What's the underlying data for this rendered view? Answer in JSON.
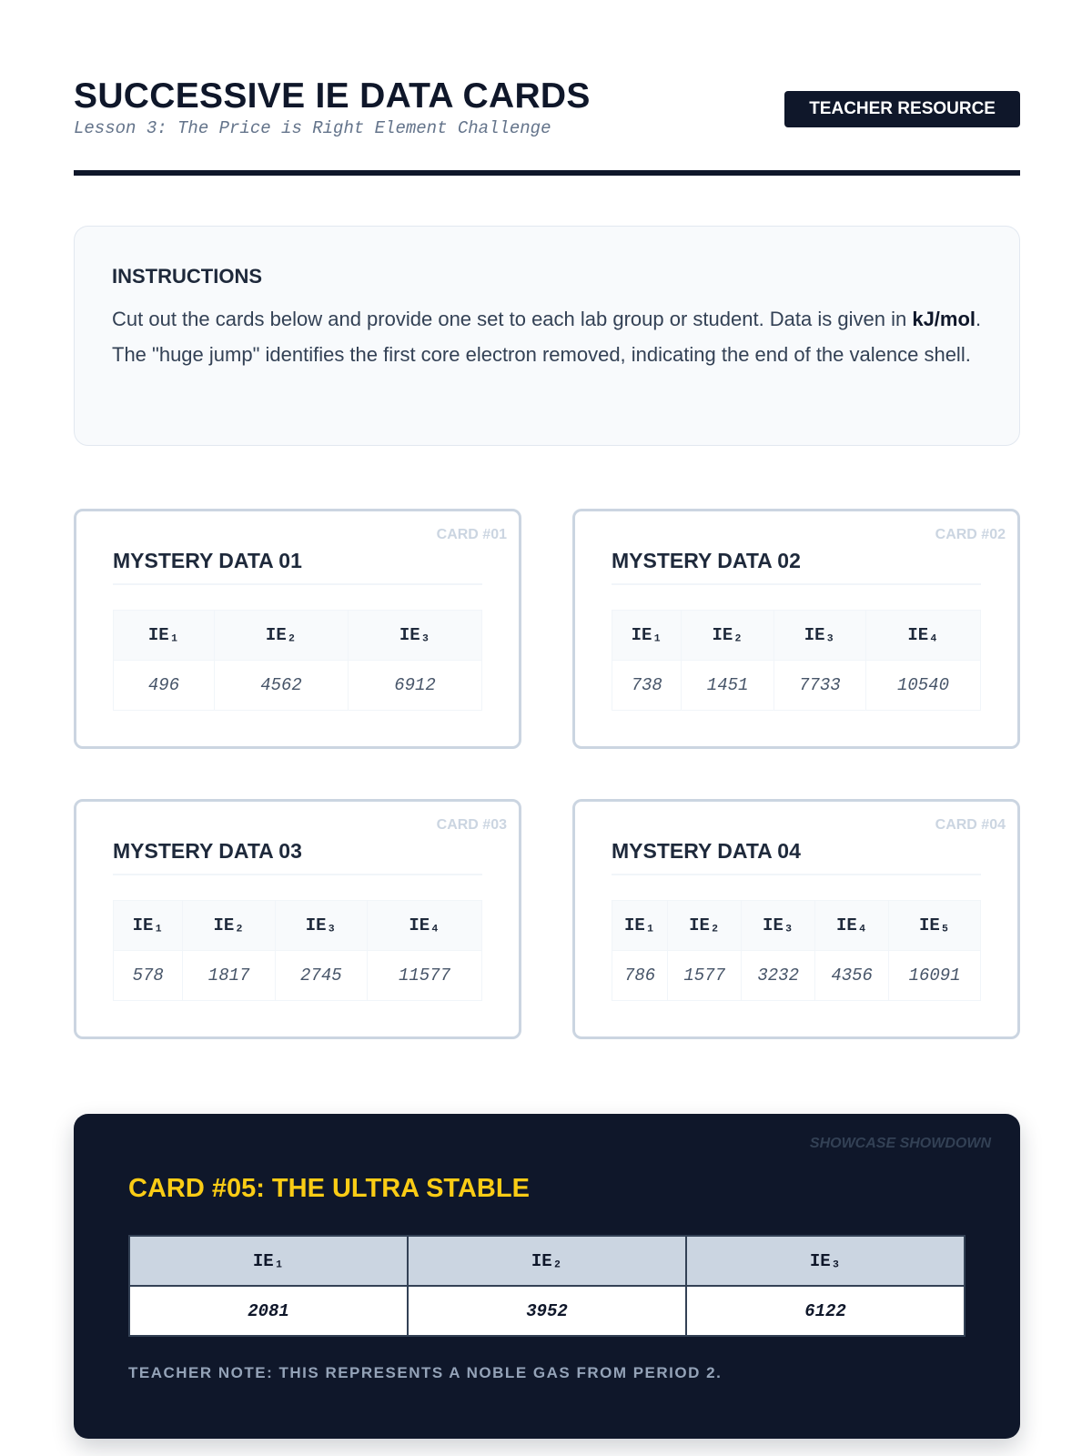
{
  "header": {
    "title": "SUCCESSIVE IE DATA CARDS",
    "subtitle": "Lesson 3: The Price is Right Element Challenge",
    "badge": "TEACHER RESOURCE"
  },
  "instructions": {
    "title": "INSTRUCTIONS",
    "text_before": "Cut out the cards below and provide one set to each lab group or student. Data is given in ",
    "unit": "kJ/mol",
    "text_after": ". The \"huge jump\" identifies the first core electron removed, indicating the end of the valence shell."
  },
  "cards": [
    {
      "tag": "CARD #01",
      "title": "MYSTERY DATA 01",
      "headers": [
        "IE₁",
        "IE₂",
        "IE₃"
      ],
      "values": [
        "496",
        "4562",
        "6912"
      ]
    },
    {
      "tag": "CARD #02",
      "title": "MYSTERY DATA 02",
      "headers": [
        "IE₁",
        "IE₂",
        "IE₃",
        "IE₄"
      ],
      "values": [
        "738",
        "1451",
        "7733",
        "10540"
      ]
    },
    {
      "tag": "CARD #03",
      "title": "MYSTERY DATA 03",
      "headers": [
        "IE₁",
        "IE₂",
        "IE₃",
        "IE₄"
      ],
      "values": [
        "578",
        "1817",
        "2745",
        "11577"
      ]
    },
    {
      "tag": "CARD #04",
      "title": "MYSTERY DATA 04",
      "headers": [
        "IE₁",
        "IE₂",
        "IE₃",
        "IE₄",
        "IE₅"
      ],
      "values": [
        "786",
        "1577",
        "3232",
        "4356",
        "16091"
      ]
    }
  ],
  "showcase": {
    "tag": "SHOWCASE SHOWDOWN",
    "title": "CARD #05: THE ULTRA STABLE",
    "headers": [
      "IE₁",
      "IE₂",
      "IE₃"
    ],
    "values": [
      "2081",
      "3952",
      "6122"
    ],
    "note": "TEACHER NOTE: THIS REPRESENTS A NOBLE GAS FROM PERIOD 2."
  }
}
